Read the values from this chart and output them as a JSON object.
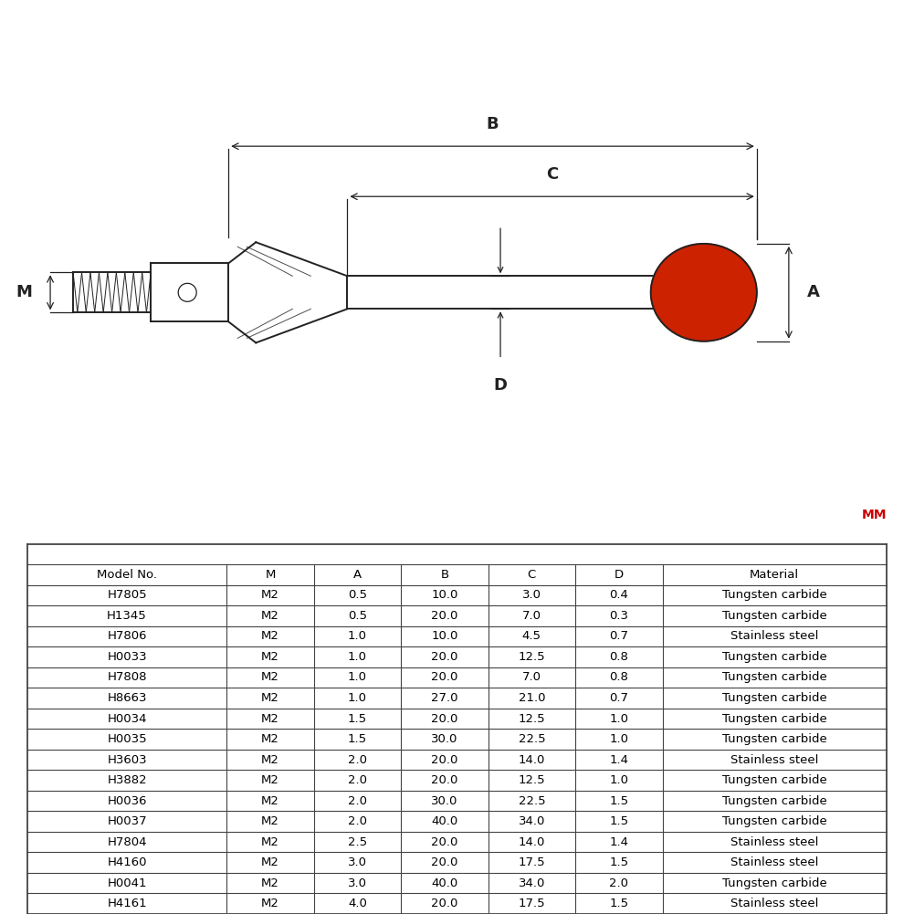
{
  "table_data": [
    [
      "H7805",
      "M2",
      "0.5",
      "10.0",
      "3.0",
      "0.4",
      "Tungsten carbide"
    ],
    [
      "H1345",
      "M2",
      "0.5",
      "20.0",
      "7.0",
      "0.3",
      "Tungsten carbide"
    ],
    [
      "H7806",
      "M2",
      "1.0",
      "10.0",
      "4.5",
      "0.7",
      "Stainless steel"
    ],
    [
      "H0033",
      "M2",
      "1.0",
      "20.0",
      "12.5",
      "0.8",
      "Tungsten carbide"
    ],
    [
      "H7808",
      "M2",
      "1.0",
      "20.0",
      "7.0",
      "0.8",
      "Tungsten carbide"
    ],
    [
      "H8663",
      "M2",
      "1.0",
      "27.0",
      "21.0",
      "0.7",
      "Tungsten carbide"
    ],
    [
      "H0034",
      "M2",
      "1.5",
      "20.0",
      "12.5",
      "1.0",
      "Tungsten carbide"
    ],
    [
      "H0035",
      "M2",
      "1.5",
      "30.0",
      "22.5",
      "1.0",
      "Tungsten carbide"
    ],
    [
      "H3603",
      "M2",
      "2.0",
      "20.0",
      "14.0",
      "1.4",
      "Stainless steel"
    ],
    [
      "H3882",
      "M2",
      "2.0",
      "20.0",
      "12.5",
      "1.0",
      "Tungsten carbide"
    ],
    [
      "H0036",
      "M2",
      "2.0",
      "30.0",
      "22.5",
      "1.5",
      "Tungsten carbide"
    ],
    [
      "H0037",
      "M2",
      "2.0",
      "40.0",
      "34.0",
      "1.5",
      "Tungsten carbide"
    ],
    [
      "H7804",
      "M2",
      "2.5",
      "20.0",
      "14.0",
      "1.4",
      "Stainless steel"
    ],
    [
      "H4160",
      "M2",
      "3.0",
      "20.0",
      "17.5",
      "1.5",
      "Stainless steel"
    ],
    [
      "H0041",
      "M2",
      "3.0",
      "40.0",
      "34.0",
      "2.0",
      "Tungsten carbide"
    ],
    [
      "H4161",
      "M2",
      "4.0",
      "20.0",
      "17.5",
      "1.5",
      "Stainless steel"
    ]
  ],
  "col_headers": [
    "Model No.",
    "M",
    "A",
    "B",
    "C",
    "D",
    "Material"
  ],
  "col_widths_rel": [
    1.6,
    0.7,
    0.7,
    0.7,
    0.7,
    0.7,
    1.8
  ],
  "mm_label": "MM",
  "mm_color": "#cc0000",
  "bg_color": "#ffffff",
  "line_color": "#222222",
  "ball_color": "#cc2200",
  "table_border_color": "#444444",
  "font_size_table": 9.5,
  "font_size_header": 9.5,
  "font_size_dim_label": 13,
  "font_size_mm": 10
}
